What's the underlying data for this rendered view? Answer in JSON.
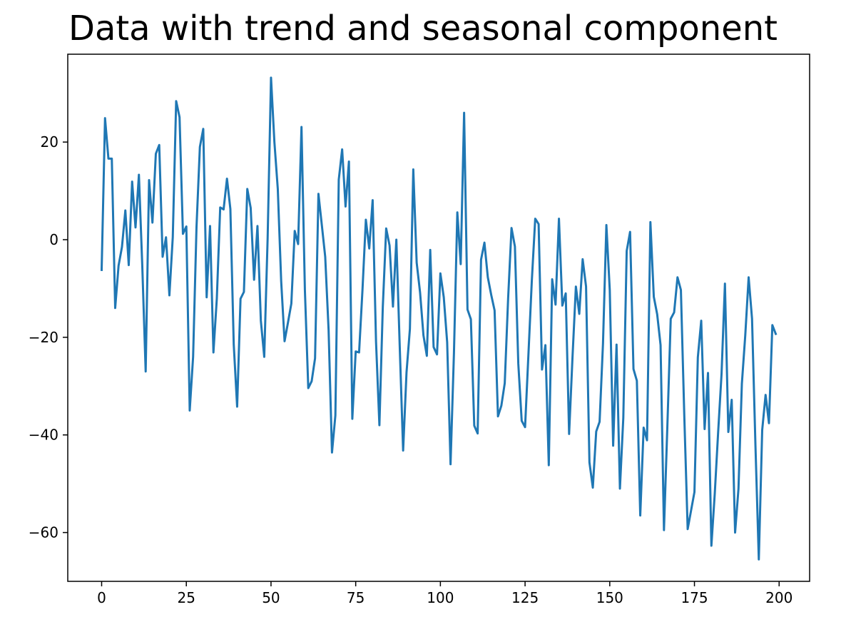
{
  "chart_data": {
    "type": "line",
    "title": "Data with trend and seasonal component",
    "xlabel": "",
    "ylabel": "",
    "xlim": [
      -10,
      209
    ],
    "ylim": [
      -70,
      38
    ],
    "xticks": [
      0,
      25,
      50,
      75,
      100,
      125,
      150,
      175,
      200
    ],
    "xtick_labels": [
      "0",
      "25",
      "50",
      "75",
      "100",
      "125",
      "150",
      "175",
      "200"
    ],
    "yticks": [
      -60,
      -40,
      -20,
      0,
      20
    ],
    "ytick_labels": [
      "−60",
      "−40",
      "−20",
      "0",
      "20"
    ],
    "grid": false,
    "color": "#1f77b4",
    "series": [
      {
        "x": [
          0,
          1,
          2,
          3,
          4,
          5,
          6,
          7,
          8,
          9,
          10,
          11,
          12,
          13,
          14,
          15,
          16,
          17,
          18,
          19,
          20,
          21,
          22,
          23,
          24,
          25,
          26,
          27,
          28,
          29,
          30,
          31,
          32,
          33,
          34,
          35,
          36,
          37,
          38,
          39,
          40,
          41,
          42,
          43,
          44,
          45,
          46,
          47,
          48,
          49,
          50,
          51,
          52,
          53,
          54,
          55,
          56,
          57,
          58,
          59,
          60,
          61,
          62,
          63,
          64,
          65,
          66,
          67,
          68,
          69,
          70,
          71,
          72,
          73,
          74,
          75,
          76,
          77,
          78,
          79,
          80,
          81,
          82,
          83,
          84,
          85,
          86,
          87,
          88,
          89,
          90,
          91,
          92,
          93,
          94,
          95,
          96,
          97,
          98,
          99,
          100,
          101,
          102,
          103,
          104,
          105,
          106,
          107,
          108,
          109,
          110,
          111,
          112,
          113,
          114,
          115,
          116,
          117,
          118,
          119,
          120,
          121,
          122,
          123,
          124,
          125,
          126,
          127,
          128,
          129,
          130,
          131,
          132,
          133,
          134,
          135,
          136,
          137,
          138,
          139,
          140,
          141,
          142,
          143,
          144,
          145,
          146,
          147,
          148,
          149,
          150,
          151,
          152,
          153,
          154,
          155,
          156,
          157,
          158,
          159,
          160,
          161,
          162,
          163,
          164,
          165,
          166,
          167,
          168,
          169,
          170,
          171,
          172,
          173,
          174,
          175,
          176,
          177,
          178,
          179,
          180,
          181,
          182,
          183,
          184,
          185,
          186,
          187,
          188,
          189,
          190,
          191,
          192,
          193,
          194,
          195,
          196,
          197,
          198,
          199
        ],
        "y": [
          -6.2,
          24.9,
          16.6,
          16.6,
          -14.0,
          -5.3,
          -1.5,
          6.0,
          -5.2,
          11.9,
          2.5,
          13.3,
          -5.4,
          -27.0,
          12.2,
          3.5,
          17.6,
          19.4,
          -3.5,
          0.5,
          -11.4,
          0.5,
          28.4,
          25.1,
          1.2,
          2.7,
          -35.0,
          -24.0,
          2.5,
          19.0,
          22.7,
          -11.8,
          2.8,
          -23.1,
          -12.1,
          6.6,
          6.2,
          12.5,
          6.3,
          -21.5,
          -34.2,
          -12.1,
          -10.7,
          10.4,
          6.5,
          -8.2,
          2.8,
          -16.6,
          -24.0,
          0.2,
          33.2,
          20.0,
          10.4,
          -8.5,
          -20.8,
          -17.0,
          -13.1,
          1.8,
          -0.9,
          23.1,
          -10.3,
          -30.4,
          -29.0,
          -24.3,
          9.4,
          3.0,
          -3.5,
          -18.5,
          -43.6,
          -36.0,
          12.3,
          18.5,
          6.8,
          16.0,
          -36.7,
          -22.9,
          -23.1,
          -10.3,
          4.1,
          -1.8,
          8.1,
          -20.9,
          -38.0,
          -13.8,
          2.3,
          -1.2,
          -13.7,
          0.0,
          -21.9,
          -43.2,
          -27.2,
          -18.3,
          14.4,
          -4.7,
          -10.8,
          -19.6,
          -23.8,
          -2.1,
          -22.0,
          -23.5,
          -6.9,
          -11.8,
          -21.0,
          -46.0,
          -23.3,
          5.6,
          -5.0,
          26.0,
          -14.3,
          -16.3,
          -38.1,
          -39.7,
          -4.1,
          -0.6,
          -7.7,
          -11.3,
          -14.5,
          -36.2,
          -34.0,
          -29.4,
          -12.0,
          2.4,
          -1.4,
          -25.4,
          -37.1,
          -38.4,
          -23.4,
          -8.3,
          4.3,
          3.2,
          -26.6,
          -21.6,
          -46.2,
          -8.1,
          -13.3,
          4.3,
          -13.5,
          -11.0,
          -39.8,
          -24.1,
          -9.6,
          -15.2,
          -4.0,
          -9.6,
          -45.6,
          -50.8,
          -39.3,
          -37.3,
          -21.3,
          3.0,
          -10.3,
          -42.2,
          -21.5,
          -51.0,
          -36.5,
          -2.3,
          1.6,
          -26.5,
          -28.9,
          -56.5,
          -38.5,
          -41.1,
          3.6,
          -11.7,
          -15.3,
          -21.6,
          -59.5,
          -38.3,
          -16.2,
          -14.9,
          -7.7,
          -10.3,
          -36.0,
          -59.3,
          -55.5,
          -51.7,
          -24.1,
          -16.6,
          -38.8,
          -27.3,
          -62.7,
          -52.0,
          -39.4,
          -27.5,
          -9.0,
          -39.4,
          -32.8,
          -60.0,
          -51.0,
          -29.5,
          -19.6,
          -7.7,
          -16.2,
          -42.0,
          -65.5,
          -39.0,
          -31.8,
          -37.6,
          -17.5,
          -19.3
        ]
      }
    ]
  }
}
